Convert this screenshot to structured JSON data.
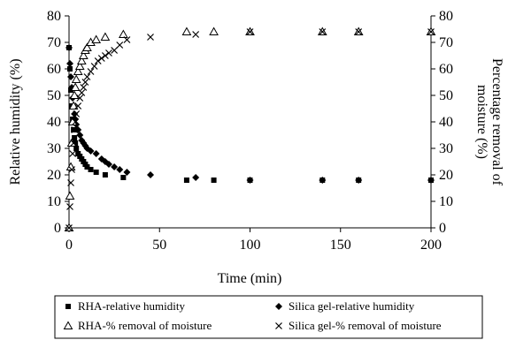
{
  "chart_data": {
    "type": "scatter",
    "xlabel": "Time (min)",
    "ylabel_left": "Relative humidity (%)",
    "ylabel_right_lines": [
      "Percentage removal of",
      "moisture (%)"
    ],
    "xlim": [
      0,
      200
    ],
    "ylim": [
      0,
      80
    ],
    "y2lim": [
      0,
      80
    ],
    "x_ticks": [
      0,
      50,
      100,
      150,
      200
    ],
    "y_ticks": [
      0,
      10,
      20,
      30,
      40,
      50,
      60,
      70,
      80
    ],
    "y2_ticks": [
      0,
      10,
      20,
      30,
      40,
      50,
      60,
      70,
      80
    ],
    "grid": false,
    "legend_position": "bottom",
    "series": [
      {
        "name": "RHA-relative humidity",
        "marker": "square",
        "axis": "left",
        "points": [
          [
            0,
            68
          ],
          [
            0.5,
            60
          ],
          [
            1,
            52
          ],
          [
            1.5,
            46
          ],
          [
            2,
            41
          ],
          [
            2.5,
            37
          ],
          [
            3,
            34
          ],
          [
            3.5,
            32
          ],
          [
            4,
            30
          ],
          [
            5,
            28
          ],
          [
            6,
            27
          ],
          [
            7,
            26
          ],
          [
            8,
            25
          ],
          [
            9,
            24
          ],
          [
            10,
            23
          ],
          [
            12,
            22
          ],
          [
            15,
            21
          ],
          [
            20,
            20
          ],
          [
            30,
            19
          ],
          [
            65,
            18
          ],
          [
            80,
            18
          ],
          [
            100,
            18
          ],
          [
            140,
            18
          ],
          [
            160,
            18
          ],
          [
            200,
            18
          ]
        ]
      },
      {
        "name": "Silica gel-relative humidity",
        "marker": "diamond",
        "axis": "left",
        "points": [
          [
            0,
            68
          ],
          [
            0.5,
            62
          ],
          [
            1,
            57
          ],
          [
            1.5,
            53
          ],
          [
            2,
            49
          ],
          [
            2.5,
            46
          ],
          [
            3,
            43
          ],
          [
            3.5,
            41
          ],
          [
            4,
            39
          ],
          [
            5,
            37
          ],
          [
            6,
            35
          ],
          [
            7,
            33
          ],
          [
            8,
            32
          ],
          [
            9,
            31
          ],
          [
            10,
            30
          ],
          [
            12,
            29
          ],
          [
            15,
            28
          ],
          [
            18,
            26
          ],
          [
            20,
            25
          ],
          [
            22,
            24
          ],
          [
            25,
            23
          ],
          [
            28,
            22
          ],
          [
            32,
            21
          ],
          [
            45,
            20
          ],
          [
            70,
            19
          ],
          [
            100,
            18
          ],
          [
            140,
            18
          ],
          [
            160,
            18
          ],
          [
            200,
            18
          ]
        ]
      },
      {
        "name": "RHA-% removal of moisture",
        "marker": "triangle",
        "axis": "right",
        "points": [
          [
            0,
            0
          ],
          [
            0.5,
            12
          ],
          [
            1,
            23
          ],
          [
            1.5,
            32
          ],
          [
            2,
            40
          ],
          [
            2.5,
            46
          ],
          [
            3,
            50
          ],
          [
            3.5,
            53
          ],
          [
            4,
            56
          ],
          [
            5,
            59
          ],
          [
            6,
            61
          ],
          [
            7,
            63
          ],
          [
            8,
            65
          ],
          [
            9,
            67
          ],
          [
            10,
            68
          ],
          [
            12,
            70
          ],
          [
            15,
            71
          ],
          [
            20,
            72
          ],
          [
            30,
            73
          ],
          [
            65,
            74
          ],
          [
            80,
            74
          ],
          [
            100,
            74
          ],
          [
            140,
            74
          ],
          [
            160,
            74
          ],
          [
            200,
            74
          ]
        ]
      },
      {
        "name": "Silica gel-% removal of moisture",
        "marker": "x",
        "axis": "right",
        "points": [
          [
            0,
            0
          ],
          [
            0.5,
            8
          ],
          [
            1,
            17
          ],
          [
            1.5,
            22
          ],
          [
            2,
            28
          ],
          [
            2.5,
            32
          ],
          [
            3,
            37
          ],
          [
            3.5,
            40
          ],
          [
            4,
            43
          ],
          [
            5,
            46
          ],
          [
            6,
            49
          ],
          [
            7,
            51
          ],
          [
            8,
            53
          ],
          [
            9,
            55
          ],
          [
            10,
            57
          ],
          [
            12,
            59
          ],
          [
            14,
            61
          ],
          [
            16,
            63
          ],
          [
            18,
            64
          ],
          [
            20,
            65
          ],
          [
            22,
            66
          ],
          [
            25,
            67
          ],
          [
            28,
            69
          ],
          [
            32,
            71
          ],
          [
            45,
            72
          ],
          [
            70,
            73
          ],
          [
            100,
            74
          ],
          [
            140,
            74
          ],
          [
            160,
            74
          ],
          [
            200,
            74
          ]
        ]
      }
    ]
  }
}
